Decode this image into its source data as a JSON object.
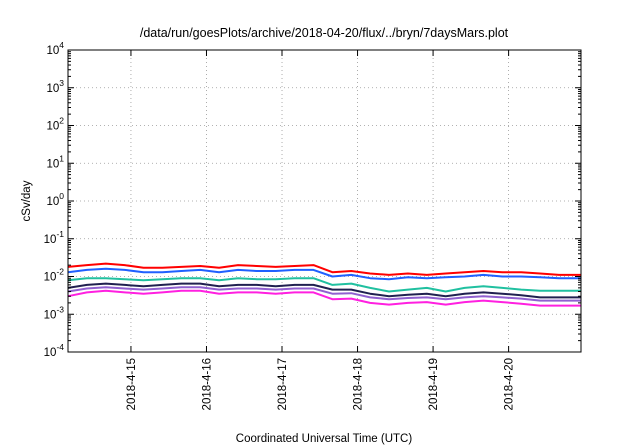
{
  "chart_data": {
    "type": "line",
    "title": "/data/run/goesPlots/archive/2018-04-20/flux/../bryn/7daysMars.plot",
    "xlabel": "Coordinated Universal Time (UTC)",
    "ylabel": "cSv/day",
    "y_scale": "log",
    "ylim": [
      0.0001,
      10000
    ],
    "y_ticks": [
      {
        "value": 0.0001,
        "base": "10",
        "exp": "-4"
      },
      {
        "value": 0.001,
        "base": "10",
        "exp": "-3"
      },
      {
        "value": 0.01,
        "base": "10",
        "exp": "-2"
      },
      {
        "value": 0.1,
        "base": "10",
        "exp": "-1"
      },
      {
        "value": 1,
        "base": "10",
        "exp": "0"
      },
      {
        "value": 10,
        "base": "10",
        "exp": "1"
      },
      {
        "value": 100,
        "base": "10",
        "exp": "2"
      },
      {
        "value": 1000,
        "base": "10",
        "exp": "3"
      },
      {
        "value": 10000,
        "base": "10",
        "exp": "4"
      }
    ],
    "xlim": [
      "2018-04-14 04:00",
      "2018-04-20 23:00"
    ],
    "x_ticks": [
      "2018-4-15",
      "2018-4-16",
      "2018-4-17",
      "2018-4-18",
      "2018-4-19",
      "2018-4-20"
    ],
    "x_tick_dates": [
      "2018-04-15",
      "2018-04-16",
      "2018-04-17",
      "2018-04-18",
      "2018-04-19",
      "2018-04-20"
    ],
    "grid": true,
    "legend": "none",
    "x": [
      "2018-04-14 04:00",
      "2018-04-14 10:00",
      "2018-04-14 16:00",
      "2018-04-14 22:00",
      "2018-04-15 04:00",
      "2018-04-15 10:00",
      "2018-04-15 16:00",
      "2018-04-15 22:00",
      "2018-04-16 04:00",
      "2018-04-16 10:00",
      "2018-04-16 16:00",
      "2018-04-16 22:00",
      "2018-04-17 04:00",
      "2018-04-17 10:00",
      "2018-04-17 16:00",
      "2018-04-17 22:00",
      "2018-04-18 04:00",
      "2018-04-18 10:00",
      "2018-04-18 16:00",
      "2018-04-18 22:00",
      "2018-04-19 04:00",
      "2018-04-19 10:00",
      "2018-04-19 16:00",
      "2018-04-19 22:00",
      "2018-04-20 04:00",
      "2018-04-20 10:00",
      "2018-04-20 16:00",
      "2018-04-20 23:00"
    ],
    "series": [
      {
        "color": "#ff0000",
        "values": [
          0.018,
          0.02,
          0.022,
          0.02,
          0.017,
          0.017,
          0.018,
          0.019,
          0.017,
          0.02,
          0.019,
          0.018,
          0.019,
          0.02,
          0.013,
          0.014,
          0.012,
          0.011,
          0.012,
          0.011,
          0.012,
          0.013,
          0.014,
          0.013,
          0.013,
          0.012,
          0.011,
          0.011
        ]
      },
      {
        "color": "#2060ff",
        "values": [
          0.013,
          0.015,
          0.016,
          0.015,
          0.013,
          0.013,
          0.014,
          0.015,
          0.013,
          0.015,
          0.014,
          0.014,
          0.015,
          0.015,
          0.01,
          0.011,
          0.009,
          0.0085,
          0.0095,
          0.009,
          0.0095,
          0.01,
          0.011,
          0.01,
          0.01,
          0.0095,
          0.009,
          0.009
        ]
      },
      {
        "color": "#20c0a0",
        "values": [
          0.008,
          0.009,
          0.009,
          0.0085,
          0.008,
          0.0085,
          0.009,
          0.009,
          0.008,
          0.009,
          0.0085,
          0.0085,
          0.009,
          0.009,
          0.006,
          0.0065,
          0.005,
          0.004,
          0.0045,
          0.005,
          0.004,
          0.005,
          0.0055,
          0.005,
          0.0045,
          0.0042,
          0.0042,
          0.0042
        ]
      },
      {
        "color": "#202050",
        "values": [
          0.005,
          0.006,
          0.0065,
          0.006,
          0.0055,
          0.006,
          0.0065,
          0.0065,
          0.0055,
          0.006,
          0.006,
          0.0055,
          0.006,
          0.006,
          0.0045,
          0.0045,
          0.0035,
          0.003,
          0.0033,
          0.0035,
          0.003,
          0.0035,
          0.0038,
          0.0035,
          0.0032,
          0.0028,
          0.0028,
          0.0028
        ]
      },
      {
        "color": "#9060d0",
        "values": [
          0.004,
          0.0048,
          0.0052,
          0.0048,
          0.0045,
          0.0048,
          0.0052,
          0.0052,
          0.0045,
          0.0048,
          0.0048,
          0.0045,
          0.0048,
          0.0048,
          0.0035,
          0.0036,
          0.0028,
          0.0025,
          0.0027,
          0.0028,
          0.0025,
          0.0028,
          0.003,
          0.0028,
          0.0026,
          0.0023,
          0.0023,
          0.0023
        ]
      },
      {
        "color": "#ff20e0",
        "values": [
          0.003,
          0.0038,
          0.0042,
          0.0038,
          0.0035,
          0.0038,
          0.0042,
          0.0042,
          0.0035,
          0.0038,
          0.0038,
          0.0035,
          0.0038,
          0.0038,
          0.0025,
          0.0026,
          0.002,
          0.0018,
          0.002,
          0.0021,
          0.0018,
          0.0021,
          0.0023,
          0.0021,
          0.0019,
          0.0017,
          0.0017,
          0.0017
        ]
      }
    ]
  }
}
